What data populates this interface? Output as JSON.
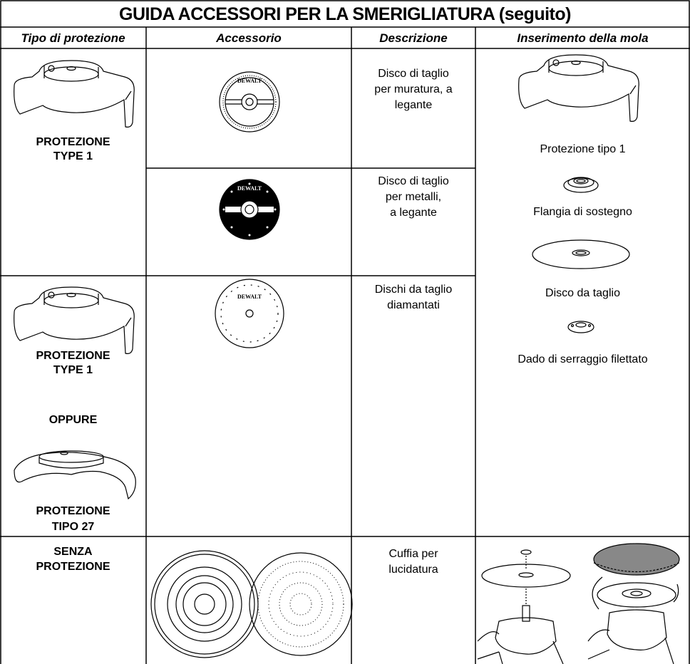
{
  "title": "GUIDA ACCESSORI PER LA SMERIGLIATURA (seguito)",
  "header": [
    "Tipo di protezione",
    "Accessorio",
    "Descrizione",
    "Inserimento della mola"
  ],
  "brand": "DEWALT",
  "rows": [
    {
      "guard": [
        "PROTEZIONE",
        "TYPE 1"
      ],
      "description": [
        "Disco di taglio",
        "per muratura, a",
        "legante"
      ]
    },
    {
      "description": [
        "Disco di taglio",
        "per metalli,",
        "a legante"
      ]
    },
    {
      "guard": [
        "PROTEZIONE",
        "TYPE 1"
      ],
      "guard_alt": "OPPURE",
      "guard2": [
        "PROTEZIONE",
        "TIPO 27"
      ],
      "description": [
        "Dischi da taglio",
        "diamantati"
      ]
    },
    {
      "guard": [
        "SENZA",
        "PROTEZIONE"
      ],
      "description": [
        "Cuffia per",
        "lucidatura"
      ]
    }
  ],
  "mounting": [
    "Protezione tipo 1",
    "Flangia di sostegno",
    "Disco da taglio",
    "Dado di serraggio filettato"
  ]
}
